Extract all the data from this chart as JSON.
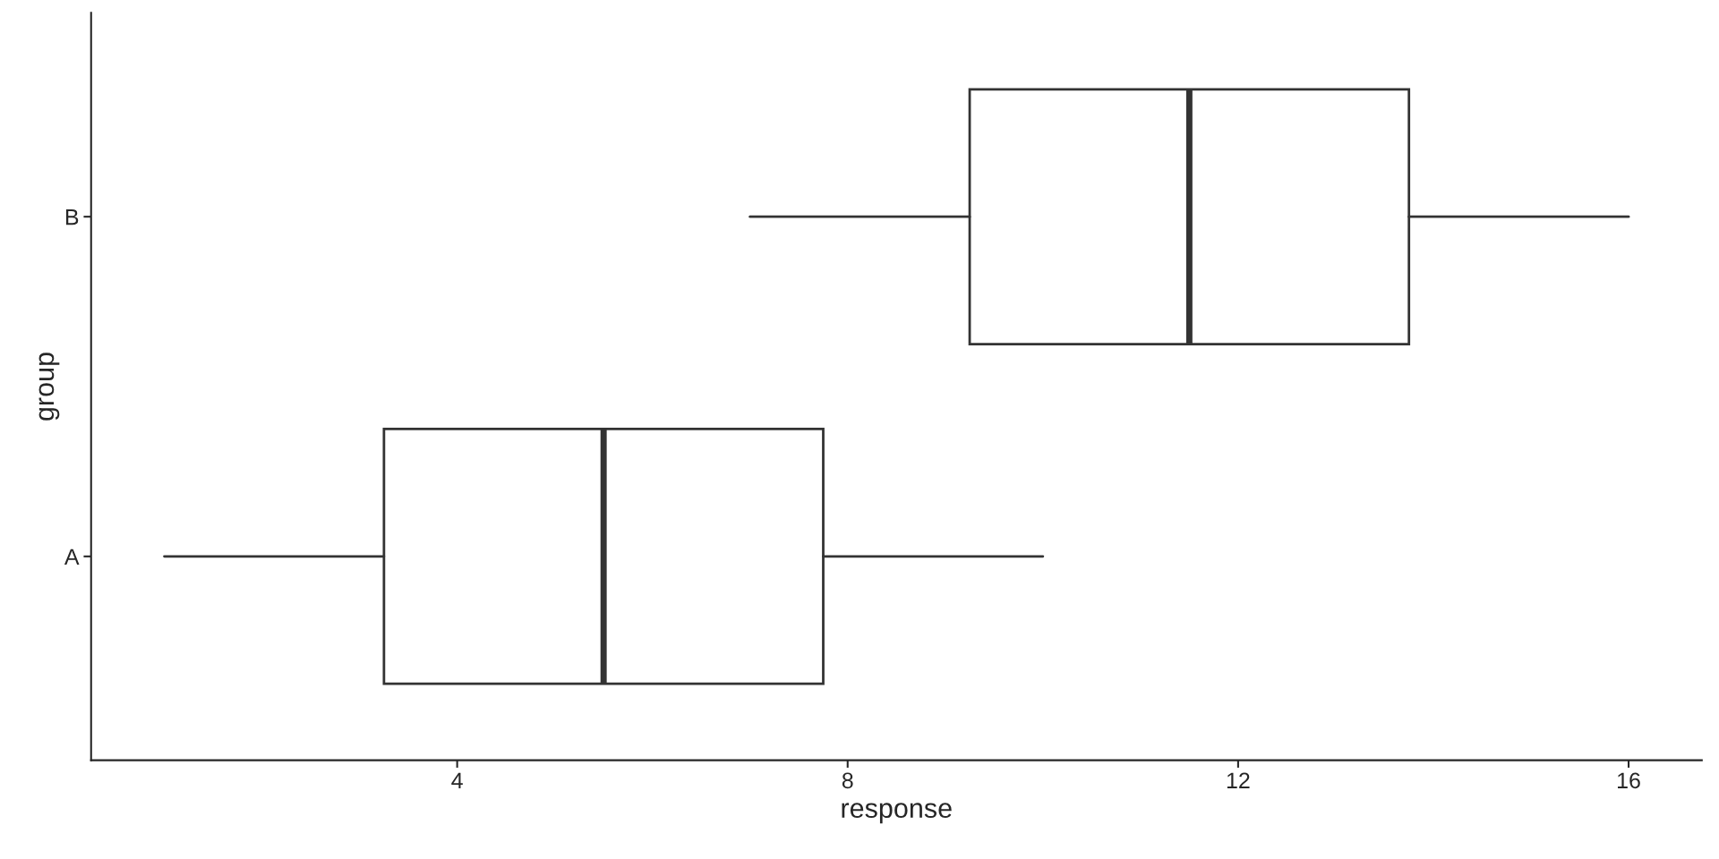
{
  "chart_data": {
    "type": "box",
    "orientation": "horizontal",
    "xlabel": "response",
    "ylabel": "group",
    "categories": [
      "B",
      "A"
    ],
    "boxes": [
      {
        "low": 7,
        "q1": 9.25,
        "median": 11.5,
        "q3": 13.75,
        "high": 16
      },
      {
        "low": 1,
        "q1": 3.25,
        "median": 5.5,
        "q3": 7.75,
        "high": 10
      }
    ],
    "color": "#333333",
    "xlim": [
      0.25,
      16.75
    ],
    "xticks": [
      4,
      8,
      12,
      16
    ],
    "grid": false
  }
}
